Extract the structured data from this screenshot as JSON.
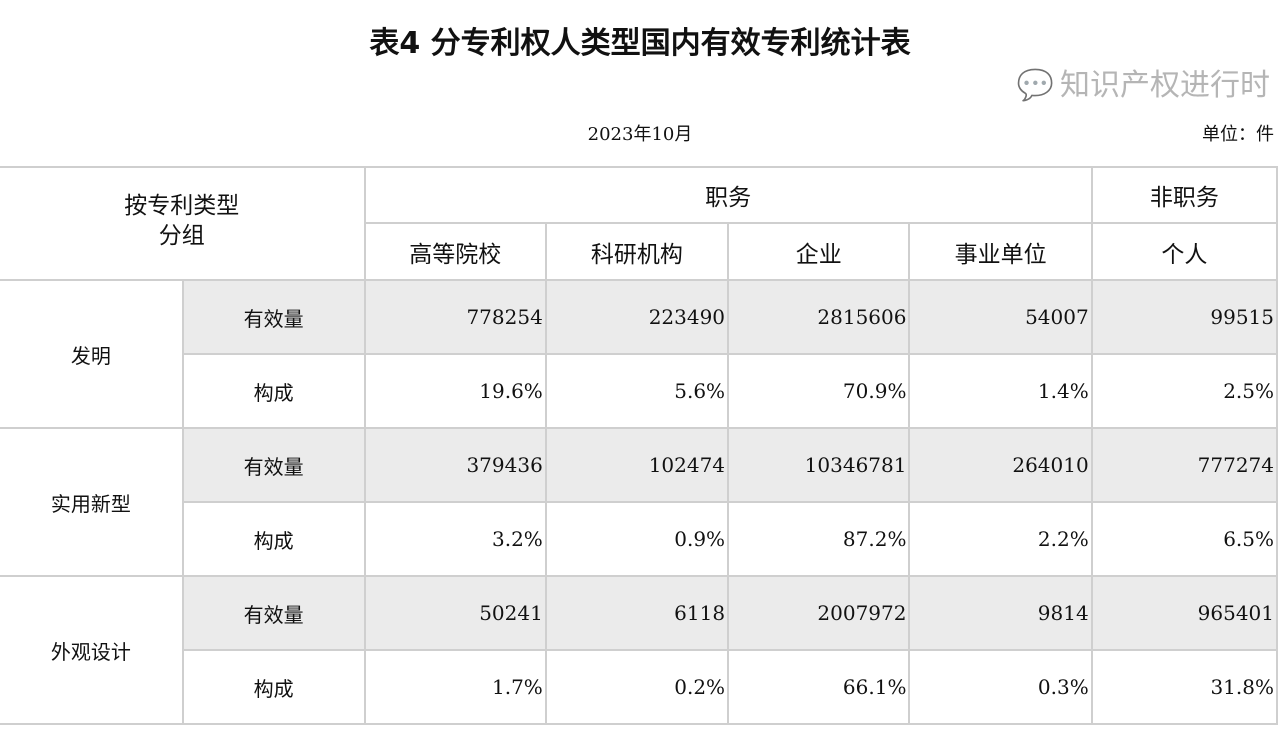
{
  "title": "表4  分专利权人类型国内有效专利统计表",
  "date": "2023年10月",
  "unit": "单位：件",
  "header": {
    "group": "按专利类型\n分组",
    "service": "职务",
    "nonservice": "非职务",
    "columns": [
      "高等院校",
      "科研机构",
      "企业",
      "事业单位",
      "个人"
    ]
  },
  "groups": [
    {
      "name": "发明",
      "rows": [
        {
          "label": "有效量",
          "values": [
            "778254",
            "223490",
            "2815606",
            "54007",
            "99515"
          ]
        },
        {
          "label": "构成",
          "values": [
            "19.6%",
            "5.6%",
            "70.9%",
            "1.4%",
            "2.5%"
          ]
        }
      ]
    },
    {
      "name": "实用新型",
      "rows": [
        {
          "label": "有效量",
          "values": [
            "379436",
            "102474",
            "10346781",
            "264010",
            "777274"
          ]
        },
        {
          "label": "构成",
          "values": [
            "3.2%",
            "0.9%",
            "87.2%",
            "2.2%",
            "6.5%"
          ]
        }
      ]
    },
    {
      "name": "外观设计",
      "rows": [
        {
          "label": "有效量",
          "values": [
            "50241",
            "6118",
            "2007972",
            "9814",
            "965401"
          ]
        },
        {
          "label": "构成",
          "values": [
            "1.7%",
            "0.2%",
            "66.1%",
            "0.3%",
            "31.8%"
          ]
        }
      ]
    }
  ],
  "watermark": "知识产权进行时"
}
